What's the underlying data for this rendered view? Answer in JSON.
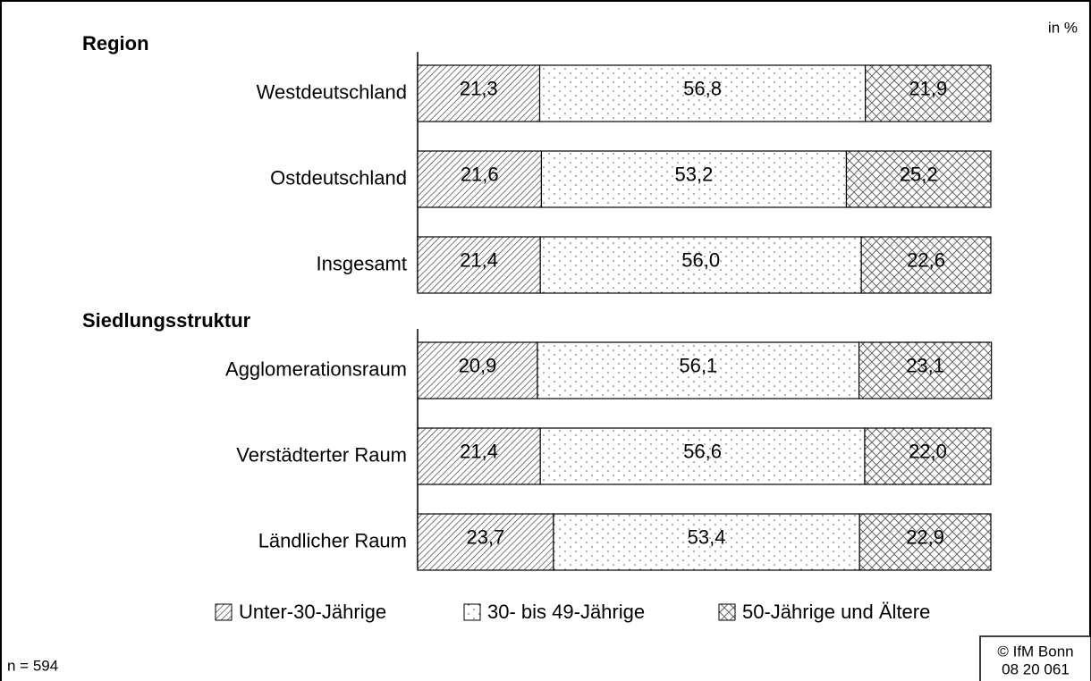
{
  "chart_data": {
    "type": "bar",
    "orientation": "horizontal",
    "stacked": true,
    "unit_label": "in %",
    "groups": [
      {
        "label": "Region",
        "categories": [
          "Westdeutschland",
          "Ostdeutschland",
          "Insgesamt"
        ]
      },
      {
        "label": "Siedlungsstruktur",
        "categories": [
          "Agglomerationsraum",
          "Verstädterter Raum",
          "Ländlicher Raum"
        ]
      }
    ],
    "series": [
      {
        "name": "Unter-30-Jährige",
        "pattern": "hatch",
        "color": "#000000",
        "values": [
          21.3,
          21.6,
          21.4,
          20.9,
          21.4,
          23.7
        ],
        "value_labels": [
          "21,3",
          "21,6",
          "21,4",
          "20,9",
          "21,4",
          "23,7"
        ]
      },
      {
        "name": "30- bis 49-Jährige",
        "pattern": "dots",
        "color": "#000000",
        "values": [
          56.8,
          53.2,
          56.0,
          56.1,
          56.6,
          53.4
        ],
        "value_labels": [
          "56,8",
          "53,2",
          "56,0",
          "56,1",
          "56,6",
          "53,4"
        ]
      },
      {
        "name": "50-Jährige und Ältere",
        "pattern": "cross",
        "color": "#000000",
        "values": [
          21.9,
          25.2,
          22.6,
          23.1,
          22.0,
          22.9
        ],
        "value_labels": [
          "21,9",
          "25,2",
          "22,6",
          "23,1",
          "22,0",
          "22,9"
        ]
      }
    ],
    "xlim": [
      0,
      100
    ],
    "footnote": "n = 594",
    "source": [
      "© IfM Bonn",
      "08 20 061"
    ]
  }
}
